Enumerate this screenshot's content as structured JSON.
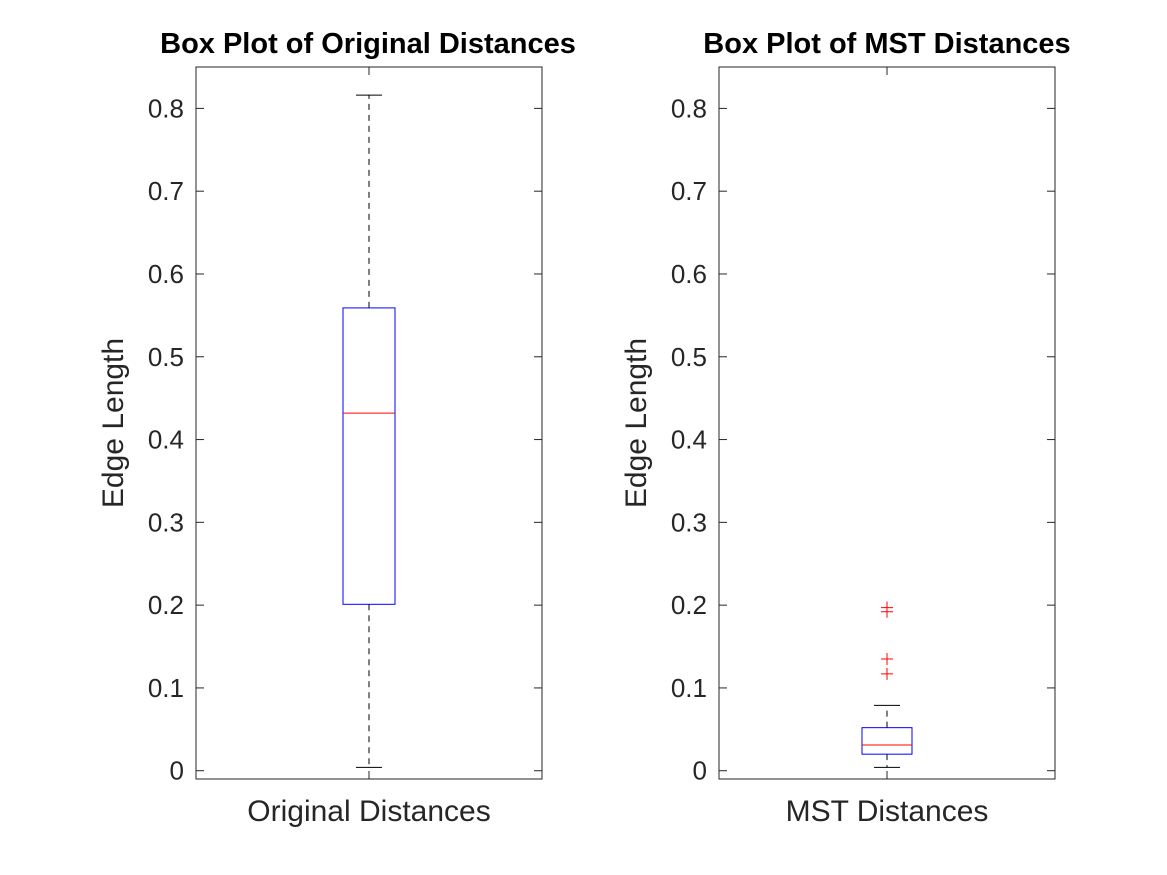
{
  "chart_data": [
    {
      "type": "box",
      "title": "Box Plot of Original Distances",
      "xlabel": "",
      "ylabel": "Edge Length",
      "categories": [
        "Original Distances"
      ],
      "ylim": [
        -0.01,
        0.85
      ],
      "yticks": [
        0,
        0.1,
        0.2,
        0.3,
        0.4,
        0.5,
        0.6,
        0.7,
        0.8
      ],
      "ytick_labels": [
        "0",
        "0.1",
        "0.2",
        "0.3",
        "0.4",
        "0.5",
        "0.6",
        "0.7",
        "0.8"
      ],
      "boxes": [
        {
          "whisker_low": 0.004,
          "q1": 0.201,
          "median": 0.432,
          "q3": 0.559,
          "whisker_high": 0.816,
          "outliers": []
        }
      ]
    },
    {
      "type": "box",
      "title": "Box Plot of MST Distances",
      "xlabel": "",
      "ylabel": "Edge Length",
      "categories": [
        "MST Distances"
      ],
      "ylim": [
        -0.01,
        0.85
      ],
      "yticks": [
        0,
        0.1,
        0.2,
        0.3,
        0.4,
        0.5,
        0.6,
        0.7,
        0.8
      ],
      "ytick_labels": [
        "0",
        "0.1",
        "0.2",
        "0.3",
        "0.4",
        "0.5",
        "0.6",
        "0.7",
        "0.8"
      ],
      "boxes": [
        {
          "whisker_low": 0.004,
          "q1": 0.02,
          "median": 0.031,
          "q3": 0.052,
          "whisker_high": 0.079,
          "outliers": [
            0.117,
            0.135,
            0.192,
            0.197
          ]
        }
      ]
    }
  ],
  "colors": {
    "box": "#0000ff",
    "median": "#ff0000",
    "whisker": "#000000",
    "outlier": "#ff0000",
    "axes": "#262626"
  }
}
